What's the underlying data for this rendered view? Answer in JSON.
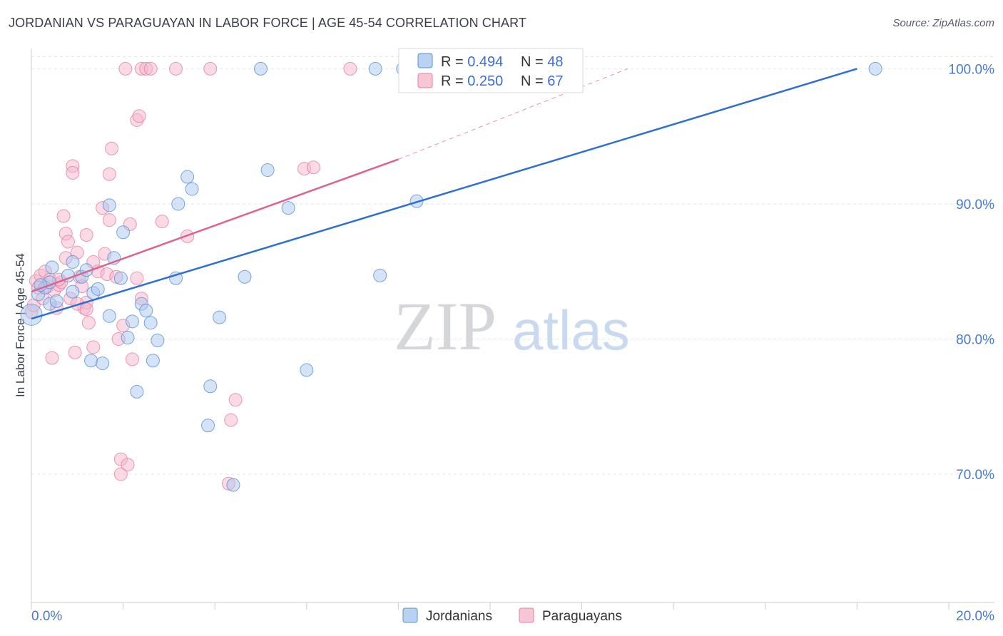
{
  "title": "JORDANIAN VS PARAGUAYAN IN LABOR FORCE | AGE 45-54 CORRELATION CHART",
  "source": "Source: ZipAtlas.com",
  "watermark": {
    "zip": "ZIP",
    "atlas": "atlas"
  },
  "colors": {
    "blue_fill": "#a9c7ee",
    "blue_stroke": "#5b8fd6",
    "blue_line": "#2f6fd0",
    "pink_fill": "#f5b8cb",
    "pink_stroke": "#e57fa1",
    "pink_line": "#e0608e",
    "grid": "#e3e6ea",
    "axis_text": "#4a7ac8"
  },
  "legend": {
    "rows": [
      {
        "r_label": "R = ",
        "r_value": "0.494",
        "n_label": "N = ",
        "n_value": "48"
      },
      {
        "r_label": "R = ",
        "r_value": "0.250",
        "n_label": "N = ",
        "n_value": "67"
      }
    ]
  },
  "chart_data": {
    "type": "scatter",
    "title": "JORDANIAN VS PARAGUAYAN IN LABOR FORCE | AGE 45-54 CORRELATION CHART",
    "xlabel": "",
    "ylabel": "In Labor Force | Age 45-54",
    "xlim": [
      0,
      20
    ],
    "ylim": [
      60.5,
      101.5
    ],
    "x_tick_labels": [
      "0.0%",
      "20.0%"
    ],
    "y_ticks": [
      70,
      80,
      90,
      100
    ],
    "y_tick_labels": [
      "70.0%",
      "80.0%",
      "90.0%",
      "100.0%"
    ],
    "grid": true,
    "legend_position": "top-center",
    "series": [
      {
        "name": "Jordanians",
        "color": "blue",
        "trend": {
          "x0": 0,
          "y0": 81.5,
          "x1": 18,
          "y1": 100
        },
        "points": [
          [
            0.0,
            81.8
          ],
          [
            0.15,
            83.3
          ],
          [
            0.3,
            83.8
          ],
          [
            0.4,
            84.2
          ],
          [
            0.4,
            82.6
          ],
          [
            0.45,
            85.3
          ],
          [
            0.55,
            82.8
          ],
          [
            0.8,
            84.7
          ],
          [
            0.9,
            85.7
          ],
          [
            0.9,
            83.5
          ],
          [
            1.1,
            84.6
          ],
          [
            1.2,
            85.1
          ],
          [
            1.3,
            78.4
          ],
          [
            1.35,
            83.4
          ],
          [
            1.45,
            83.7
          ],
          [
            1.55,
            78.2
          ],
          [
            1.7,
            89.9
          ],
          [
            1.7,
            81.7
          ],
          [
            1.8,
            86.0
          ],
          [
            1.95,
            84.5
          ],
          [
            2.0,
            87.9
          ],
          [
            2.1,
            80.1
          ],
          [
            2.2,
            81.3
          ],
          [
            2.3,
            76.1
          ],
          [
            2.4,
            82.6
          ],
          [
            2.5,
            82.1
          ],
          [
            2.6,
            81.2
          ],
          [
            2.65,
            78.4
          ],
          [
            2.75,
            79.9
          ],
          [
            3.15,
            84.5
          ],
          [
            3.2,
            90.0
          ],
          [
            3.4,
            92.0
          ],
          [
            3.5,
            91.1
          ],
          [
            3.85,
            73.6
          ],
          [
            3.9,
            76.5
          ],
          [
            4.1,
            81.6
          ],
          [
            4.65,
            84.6
          ],
          [
            5.0,
            100.0
          ],
          [
            5.15,
            92.5
          ],
          [
            5.6,
            89.7
          ],
          [
            6.0,
            77.7
          ],
          [
            4.4,
            69.2
          ],
          [
            7.5,
            100.0
          ],
          [
            7.6,
            84.7
          ],
          [
            8.1,
            100.0
          ],
          [
            8.4,
            90.2
          ],
          [
            18.4,
            100.0
          ],
          [
            0.2,
            84.0
          ]
        ]
      },
      {
        "name": "Paraguayans",
        "color": "pink",
        "trend": {
          "x0": 0,
          "y0": 83.5,
          "x1": 8,
          "y1": 93.3,
          "dashed_to": {
            "x": 13,
            "y": 100
          }
        },
        "points": [
          [
            0.0,
            82.0
          ],
          [
            0.05,
            82.5
          ],
          [
            0.1,
            84.3
          ],
          [
            0.15,
            83.8
          ],
          [
            0.2,
            84.7
          ],
          [
            0.25,
            83.0
          ],
          [
            0.3,
            85.0
          ],
          [
            0.35,
            83.9
          ],
          [
            0.4,
            84.4
          ],
          [
            0.45,
            78.6
          ],
          [
            0.5,
            83.6
          ],
          [
            0.55,
            82.3
          ],
          [
            0.6,
            84.0
          ],
          [
            0.65,
            84.2
          ],
          [
            0.75,
            86.0
          ],
          [
            0.7,
            89.1
          ],
          [
            0.75,
            87.8
          ],
          [
            0.8,
            87.2
          ],
          [
            0.85,
            83.0
          ],
          [
            0.9,
            92.8
          ],
          [
            0.9,
            92.3
          ],
          [
            0.95,
            79.0
          ],
          [
            1.0,
            86.4
          ],
          [
            1.05,
            84.6
          ],
          [
            1.1,
            83.9
          ],
          [
            1.15,
            82.3
          ],
          [
            1.2,
            82.7
          ],
          [
            1.2,
            87.7
          ],
          [
            1.25,
            81.2
          ],
          [
            1.35,
            79.4
          ],
          [
            1.35,
            85.7
          ],
          [
            1.45,
            85.0
          ],
          [
            1.55,
            89.7
          ],
          [
            1.6,
            86.3
          ],
          [
            1.65,
            84.8
          ],
          [
            1.7,
            88.8
          ],
          [
            1.7,
            92.2
          ],
          [
            1.75,
            94.1
          ],
          [
            1.85,
            84.6
          ],
          [
            1.9,
            80.0
          ],
          [
            1.95,
            71.1
          ],
          [
            1.95,
            70.0
          ],
          [
            2.0,
            81.0
          ],
          [
            2.05,
            100.0
          ],
          [
            2.1,
            70.7
          ],
          [
            2.15,
            88.5
          ],
          [
            2.2,
            78.5
          ],
          [
            2.3,
            84.5
          ],
          [
            2.3,
            96.2
          ],
          [
            2.35,
            96.5
          ],
          [
            2.4,
            83.0
          ],
          [
            2.4,
            100.0
          ],
          [
            2.5,
            100.0
          ],
          [
            2.6,
            100.0
          ],
          [
            2.85,
            88.7
          ],
          [
            3.15,
            100.0
          ],
          [
            3.4,
            87.6
          ],
          [
            3.9,
            100.0
          ],
          [
            4.3,
            69.3
          ],
          [
            4.35,
            74.0
          ],
          [
            4.45,
            75.5
          ],
          [
            5.95,
            92.6
          ],
          [
            6.15,
            92.7
          ],
          [
            6.95,
            100.0
          ],
          [
            1.0,
            82.6
          ],
          [
            0.6,
            84.4
          ],
          [
            1.2,
            82.2
          ]
        ]
      }
    ]
  }
}
